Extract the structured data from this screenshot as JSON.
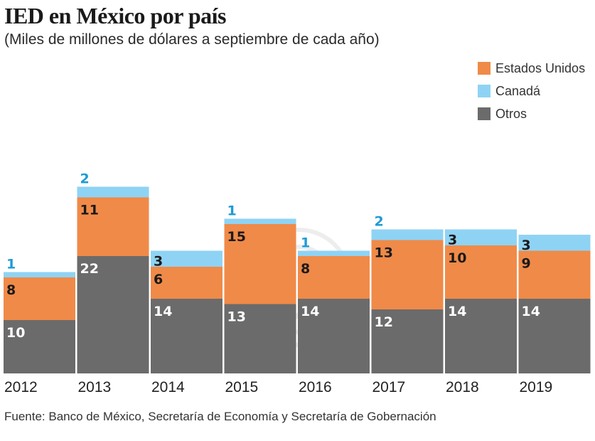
{
  "title": "IED en México por país",
  "subtitle": "(Miles de millones de dólares a septiembre de cada año)",
  "source": "Fuente: Banco de México, Secretaría de Economía y Secretaría de Gobernación",
  "colors": {
    "otros": "#6b6b6b",
    "estados_unidos": "#f08a48",
    "canada": "#8fd3f4",
    "canada_label": "#1f9ad6",
    "label_light": "#ffffff",
    "label_dark": "#1a1a1a"
  },
  "legend": [
    {
      "key": "estados_unidos",
      "label": "Estados Unidos"
    },
    {
      "key": "canada",
      "label": "Canadá"
    },
    {
      "key": "otros",
      "label": "Otros"
    }
  ],
  "chart_data": {
    "type": "bar",
    "stacked": true,
    "title": "IED en México por país",
    "subtitle": "(Miles de millones de dólares a septiembre de cada año)",
    "categories": [
      "2012",
      "2013",
      "2014",
      "2015",
      "2016",
      "2017",
      "2018",
      "2019"
    ],
    "series": [
      {
        "name": "Otros",
        "key": "otros",
        "values": [
          10,
          22,
          14,
          13,
          14,
          12,
          14,
          14
        ]
      },
      {
        "name": "Estados Unidos",
        "key": "estados_unidos",
        "values": [
          8,
          11,
          6,
          15,
          8,
          13,
          10,
          9
        ]
      },
      {
        "name": "Canadá",
        "key": "canada",
        "values": [
          1,
          2,
          3,
          1,
          1,
          2,
          3,
          3
        ]
      }
    ],
    "xlabel": "",
    "ylabel": "",
    "legend_position": "top-right"
  }
}
